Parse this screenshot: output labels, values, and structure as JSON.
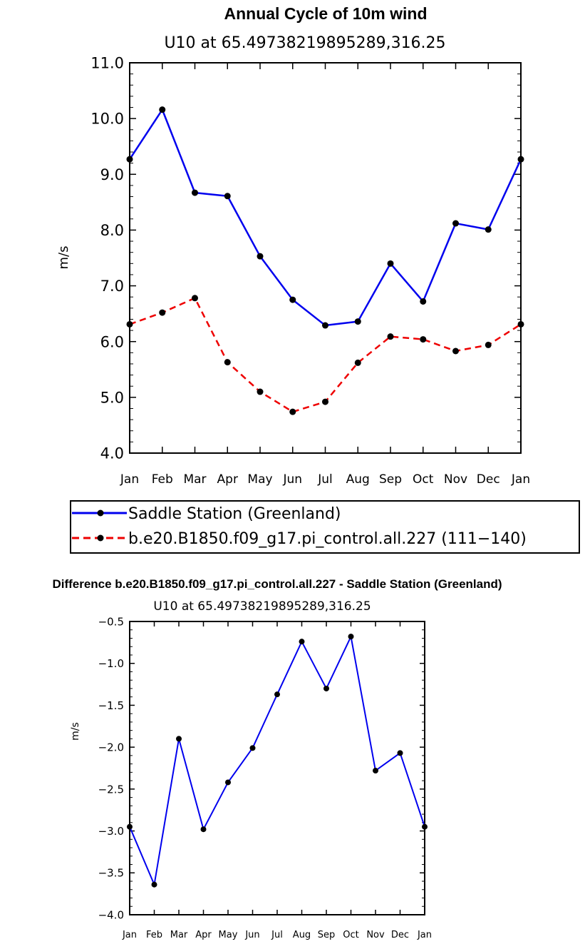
{
  "chart_data": [
    {
      "type": "line",
      "title": "Annual Cycle of 10m wind",
      "subtitle": "U10 at 65.49738219895289,316.25",
      "xlabel": "",
      "ylabel": "m/s",
      "ylim": [
        4.0,
        11.0
      ],
      "ytick_values": [
        4.0,
        5.0,
        6.0,
        7.0,
        8.0,
        9.0,
        10.0,
        11.0
      ],
      "ytick_labels": [
        "4.0",
        "5.0",
        "6.0",
        "7.0",
        "8.0",
        "9.0",
        "10.0",
        "11.0"
      ],
      "categories": [
        "Jan",
        "Feb",
        "Mar",
        "Apr",
        "May",
        "Jun",
        "Jul",
        "Aug",
        "Sep",
        "Oct",
        "Nov",
        "Dec",
        "Jan"
      ],
      "grid": false,
      "legend_position": "below",
      "series": [
        {
          "name": "Saddle Station (Greenland)",
          "color": "#0000ee",
          "dash": "solid",
          "values": [
            9.27,
            10.16,
            8.67,
            8.61,
            7.53,
            6.75,
            6.29,
            6.36,
            7.4,
            6.72,
            8.12,
            8.01,
            9.27
          ]
        },
        {
          "name": "b.e20.B1850.f09_g17.pi_control.all.227 (111−140)",
          "color": "#ee0000",
          "dash": "dashed",
          "values": [
            6.31,
            6.52,
            6.78,
            5.63,
            5.1,
            4.74,
            4.92,
            5.62,
            6.09,
            6.04,
            5.83,
            5.94,
            6.31
          ]
        }
      ]
    },
    {
      "type": "line",
      "title": "Difference b.e20.B1850.f09_g17.pi_control.all.227 - Saddle Station (Greenland)",
      "subtitle": "U10 at 65.49738219895289,316.25",
      "xlabel": "",
      "ylabel": "m/s",
      "ylim": [
        -4.0,
        -0.5
      ],
      "ytick_values": [
        -4.0,
        -3.5,
        -3.0,
        -2.5,
        -2.0,
        -1.5,
        -1.0,
        -0.5
      ],
      "ytick_labels": [
        "−4.0",
        "−3.5",
        "−3.0",
        "−2.5",
        "−2.0",
        "−1.5",
        "−1.0",
        "−0.5"
      ],
      "categories": [
        "Jan",
        "Feb",
        "Mar",
        "Apr",
        "May",
        "Jun",
        "Jul",
        "Aug",
        "Sep",
        "Oct",
        "Nov",
        "Dec",
        "Jan"
      ],
      "grid": false,
      "series": [
        {
          "color": "#0000ee",
          "dash": "solid",
          "values": [
            -2.95,
            -3.64,
            -1.9,
            -2.98,
            -2.42,
            -2.01,
            -1.37,
            -0.74,
            -1.3,
            -0.68,
            -2.28,
            -2.07,
            -2.95
          ]
        }
      ]
    }
  ]
}
